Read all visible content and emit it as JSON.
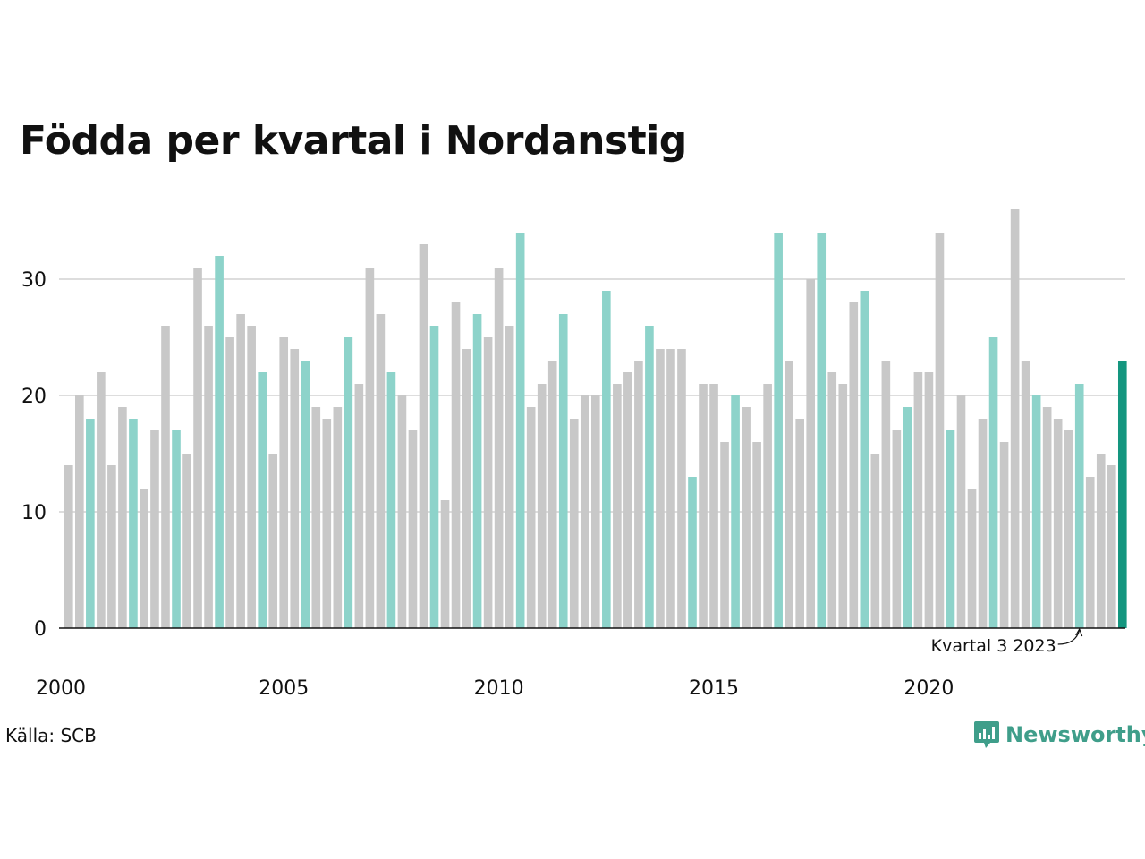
{
  "chart_data": {
    "type": "bar",
    "title": "Födda per kvartal i Nordanstig",
    "xlabel": "",
    "ylabel": "",
    "ylim": [
      0,
      38
    ],
    "yticks": [
      0,
      10,
      20,
      30
    ],
    "grid": true,
    "x_tick_labels": [
      "2000",
      "2005",
      "2010",
      "2015",
      "2020"
    ],
    "quarters_start": {
      "year": 2000,
      "quarter": 1
    },
    "values": [
      14,
      20,
      18,
      22,
      14,
      19,
      18,
      12,
      17,
      26,
      17,
      15,
      31,
      26,
      32,
      25,
      27,
      26,
      22,
      15,
      25,
      24,
      23,
      19,
      18,
      19,
      25,
      21,
      31,
      27,
      22,
      20,
      17,
      33,
      26,
      11,
      28,
      24,
      27,
      25,
      31,
      26,
      34,
      19,
      21,
      23,
      27,
      18,
      20,
      20,
      29,
      21,
      22,
      23,
      26,
      24,
      24,
      24,
      13,
      21,
      21,
      16,
      20,
      19,
      16,
      21,
      34,
      23,
      18,
      30,
      34,
      22,
      21,
      28,
      29,
      15,
      23,
      17,
      19,
      22,
      22,
      34,
      17,
      20,
      12,
      18,
      25,
      16,
      36,
      23,
      20,
      19,
      18,
      17,
      21,
      13,
      15,
      14,
      23
    ],
    "highlight_quarter": 3,
    "annotation": {
      "text": "Kvartal 3 2023",
      "target_index": 94
    }
  },
  "colors": {
    "bar": "#c8c8c8",
    "highlight": "#8dd3ca",
    "latest": "#14967f",
    "grid": "#dddddd",
    "axis": "#111111"
  },
  "source": "Källa: SCB",
  "brand": {
    "name": "Newsworthy",
    "icon": "newsworthy-logo-icon"
  }
}
